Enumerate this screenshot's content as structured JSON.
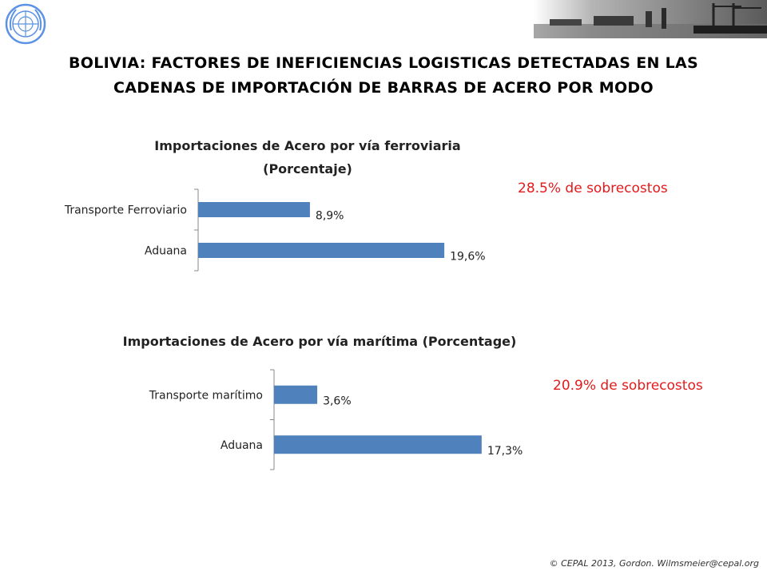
{
  "title": "BOLIVIA: FACTORES DE INEFICIENCIAS LOGISTICAS DETECTADAS EN LAS CADENAS DE IMPORTACIÓN DE BARRAS DE ACERO POR MODO",
  "callouts": {
    "rail": "28.5% de sobrecostos",
    "maritime": "20.9% de sobrecostos"
  },
  "footer": "© CEPAL 2013, Gordon. Wilmsmeier@cepal.org",
  "colors": {
    "bar": "#4f81bd",
    "callout": "#e31a1c",
    "axis": "#888888"
  },
  "chart_data": [
    {
      "type": "bar",
      "orientation": "horizontal",
      "title_line1": "Importaciones de Acero por vía ferroviaria",
      "title_line2": "(Porcentaje)",
      "categories": [
        "Transporte Ferroviario",
        "Aduana"
      ],
      "values": [
        8.9,
        19.6
      ],
      "value_labels": [
        "8,9%",
        "19,6%"
      ],
      "xlim": [
        0,
        20
      ],
      "grid": false,
      "legend": "none"
    },
    {
      "type": "bar",
      "orientation": "horizontal",
      "title_line1": "Importaciones de Acero por vía marítima (Porcentage)",
      "title_line2": "",
      "categories": [
        "Transporte marítimo",
        "Aduana"
      ],
      "values": [
        3.6,
        17.3
      ],
      "value_labels": [
        "3,6%",
        "17,3%"
      ],
      "xlim": [
        0,
        20
      ],
      "grid": false,
      "legend": "none"
    }
  ]
}
